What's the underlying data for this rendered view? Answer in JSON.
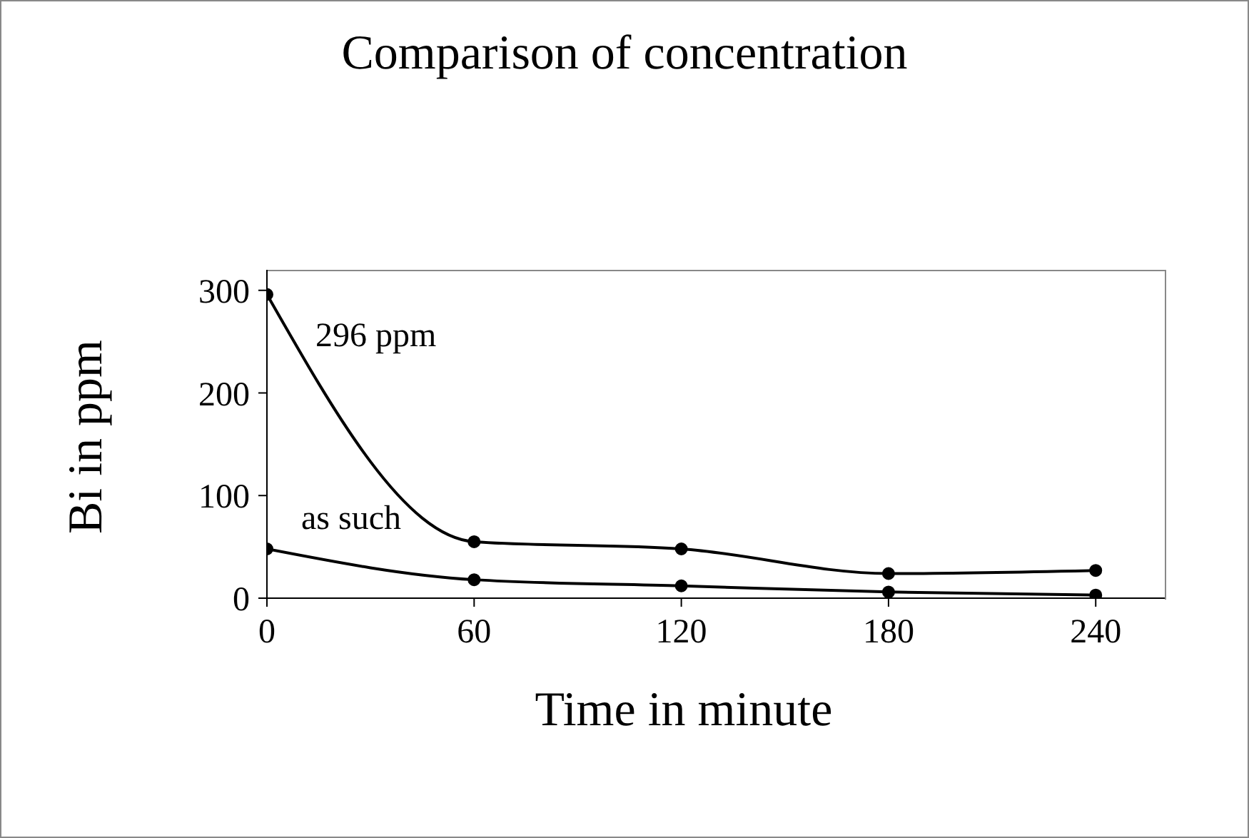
{
  "chart_data": {
    "type": "line",
    "title": "Comparison of concentration",
    "xlabel": "Time in minute",
    "ylabel": "Bi in ppm",
    "x": [
      0,
      60,
      120,
      180,
      240
    ],
    "series": [
      {
        "name": "296 ppm",
        "color": "#000000",
        "values": [
          296,
          55,
          48,
          24,
          27
        ]
      },
      {
        "name": "as such",
        "color": "#000000",
        "values": [
          48,
          18,
          12,
          6,
          3
        ]
      }
    ],
    "xlim": [
      0,
      260
    ],
    "xticks": [
      0,
      60,
      120,
      180,
      240
    ],
    "ylim": [
      0,
      320
    ],
    "yticks": [
      0,
      100,
      200,
      300
    ],
    "marker": "circle",
    "line_style": "solid"
  }
}
